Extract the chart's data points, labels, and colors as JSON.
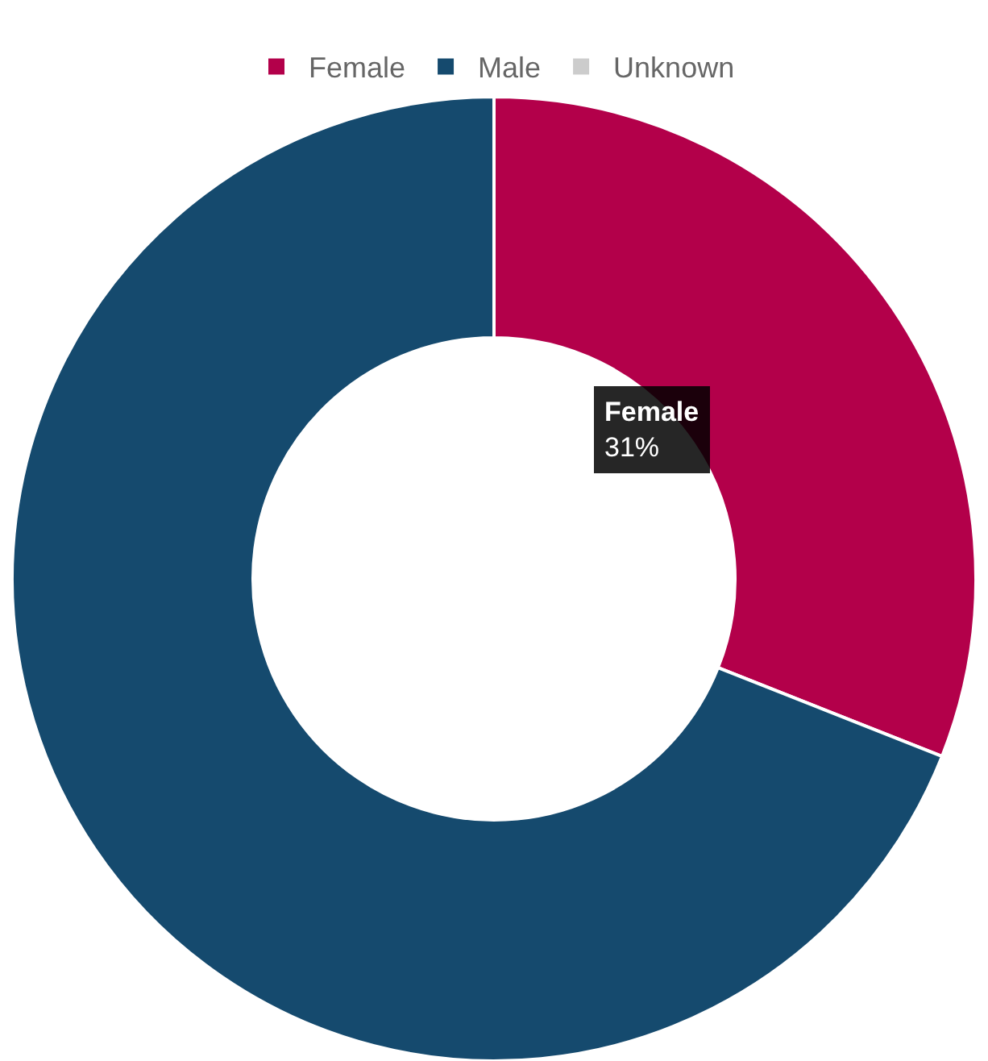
{
  "chart_data": {
    "type": "donut",
    "categories": [
      "Female",
      "Male",
      "Unknown"
    ],
    "values": [
      31,
      69,
      0
    ],
    "colors": [
      "#b3004a",
      "#154a6e",
      "#cccccc"
    ],
    "legend": "top",
    "annotations": [
      "Female\n31%"
    ]
  }
}
